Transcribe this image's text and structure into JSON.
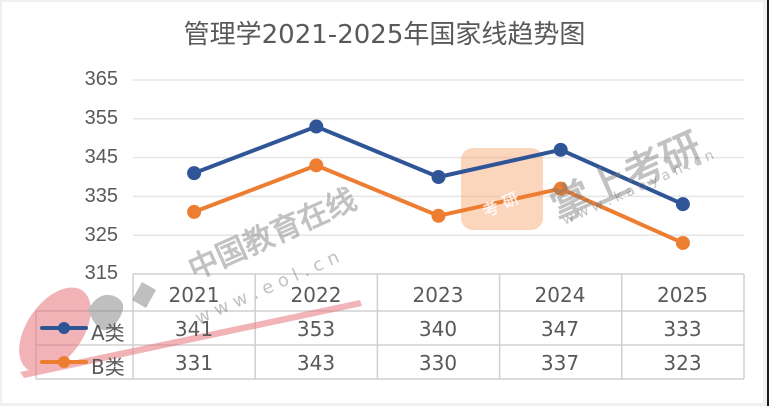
{
  "title": "管理学2021-2025年国家线趋势图",
  "chart_data": {
    "type": "line",
    "title": "管理学2021-2025年国家线趋势图",
    "categories": [
      "2021",
      "2022",
      "2023",
      "2024",
      "2025"
    ],
    "series": [
      {
        "name": "A类",
        "color": "#2f5597",
        "values": [
          341,
          353,
          340,
          347,
          333
        ]
      },
      {
        "name": "B类",
        "color": "#ed7d31",
        "values": [
          331,
          343,
          330,
          337,
          323
        ]
      }
    ],
    "xlabel": "",
    "ylabel": "",
    "ylim": [
      315,
      365
    ],
    "yticks": [
      365,
      355,
      345,
      335,
      325,
      315
    ],
    "grid": true,
    "legend_position": "data-table",
    "data_table": true
  },
  "yticks": [
    "365",
    "355",
    "345",
    "335",
    "325",
    "315"
  ],
  "table": {
    "header": [
      "2021",
      "2022",
      "2023",
      "2024",
      "2025"
    ],
    "rows": [
      {
        "label": "A类",
        "values": [
          "341",
          "353",
          "340",
          "347",
          "333"
        ]
      },
      {
        "label": "B类",
        "values": [
          "331",
          "343",
          "330",
          "337",
          "323"
        ]
      }
    ]
  },
  "watermarks": {
    "eol_cn": "中国教育在线",
    "eol_url": "w w w . e o l . c n",
    "kaoyan_cn": "掌上考研",
    "kaoyan_url": "w w w . k a o y a n . c n",
    "kaoyan_badge": "考 研"
  },
  "colors": {
    "series_a": "#2f5597",
    "series_b": "#ed7d31",
    "grid": "#e6e6e6",
    "text": "#595959"
  }
}
